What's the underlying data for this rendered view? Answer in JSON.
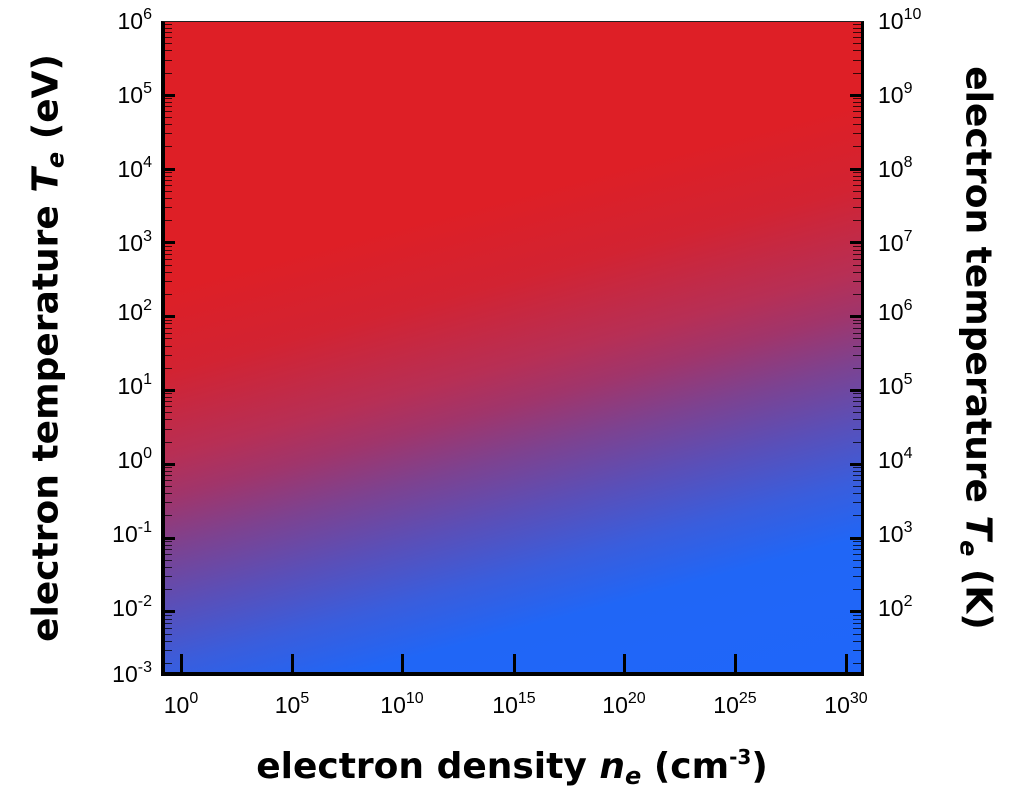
{
  "chart_data": {
    "type": "heatmap",
    "title": "",
    "xlabel": "electron density n_e (cm^-3)",
    "ylabel": "electron temperature T_e (eV)",
    "ylabel_right": "electron temperature T_e (K)",
    "x_scale": "log",
    "y_scale": "log",
    "xlim": [
      0.3,
      1e+31
    ],
    "ylim": [
      0.001,
      1000000
    ],
    "ylim_right_K": [
      11.6,
      11600000000
    ],
    "x_ticks": [
      "10^0",
      "10^5",
      "10^10",
      "10^15",
      "10^20",
      "10^25",
      "10^30"
    ],
    "y_ticks_left": [
      "10^-3",
      "10^-2",
      "10^-1",
      "10^0",
      "10^1",
      "10^2",
      "10^3",
      "10^4",
      "10^5",
      "10^6"
    ],
    "y_ticks_right": [
      "10^2",
      "10^3",
      "10^4",
      "10^5",
      "10^6",
      "10^7",
      "10^8",
      "10^9",
      "10^10"
    ],
    "colormap": {
      "low": "#1f66fa",
      "mid": "#a0356b",
      "high": "#de1f26"
    },
    "description": "Red fills high temperature / low density region (upper-left); blue fills low temperature / high density region (lower-right); smooth purple transition band rising diagonally from ~1e-2 eV at n_e=1 cm^-3 to ~1e1 eV at n_e=1e30 cm^-3",
    "transition_band": {
      "x": [
        1,
        100000.0,
        10000000000.0,
        1000000000000000.0,
        1e+20,
        1e+25,
        1e+30
      ],
      "y_eV": [
        0.02,
        0.05,
        0.12,
        0.3,
        0.8,
        2.5,
        8
      ]
    },
    "grid": false,
    "legend": null
  },
  "axes": {
    "left_ticks": [
      {
        "base": "10",
        "exp": "6"
      },
      {
        "base": "10",
        "exp": "5"
      },
      {
        "base": "10",
        "exp": "4"
      },
      {
        "base": "10",
        "exp": "3"
      },
      {
        "base": "10",
        "exp": "2"
      },
      {
        "base": "10",
        "exp": "1"
      },
      {
        "base": "10",
        "exp": "0"
      },
      {
        "base": "10",
        "exp": "-1"
      },
      {
        "base": "10",
        "exp": "-2"
      },
      {
        "base": "10",
        "exp": "-3"
      }
    ],
    "right_ticks": [
      {
        "base": "10",
        "exp": "10"
      },
      {
        "base": "10",
        "exp": "9"
      },
      {
        "base": "10",
        "exp": "8"
      },
      {
        "base": "10",
        "exp": "7"
      },
      {
        "base": "10",
        "exp": "6"
      },
      {
        "base": "10",
        "exp": "5"
      },
      {
        "base": "10",
        "exp": "4"
      },
      {
        "base": "10",
        "exp": "3"
      },
      {
        "base": "10",
        "exp": "2"
      }
    ],
    "bottom_ticks": [
      {
        "base": "10",
        "exp": "0"
      },
      {
        "base": "10",
        "exp": "5"
      },
      {
        "base": "10",
        "exp": "10"
      },
      {
        "base": "10",
        "exp": "15"
      },
      {
        "base": "10",
        "exp": "20"
      },
      {
        "base": "10",
        "exp": "25"
      },
      {
        "base": "10",
        "exp": "30"
      }
    ]
  },
  "titles": {
    "left": {
      "prefix": "electron temperature ",
      "var": "T",
      "sub": "e",
      "suffix": " (eV)"
    },
    "right": {
      "prefix": "electron temperature ",
      "var": "T",
      "sub": "e",
      "suffix": " (K)"
    },
    "bottom": {
      "prefix": "electron density ",
      "var": "n",
      "sub": "e",
      "unit_open": " (cm",
      "unit_exp": "-3",
      "unit_close": ")"
    }
  }
}
